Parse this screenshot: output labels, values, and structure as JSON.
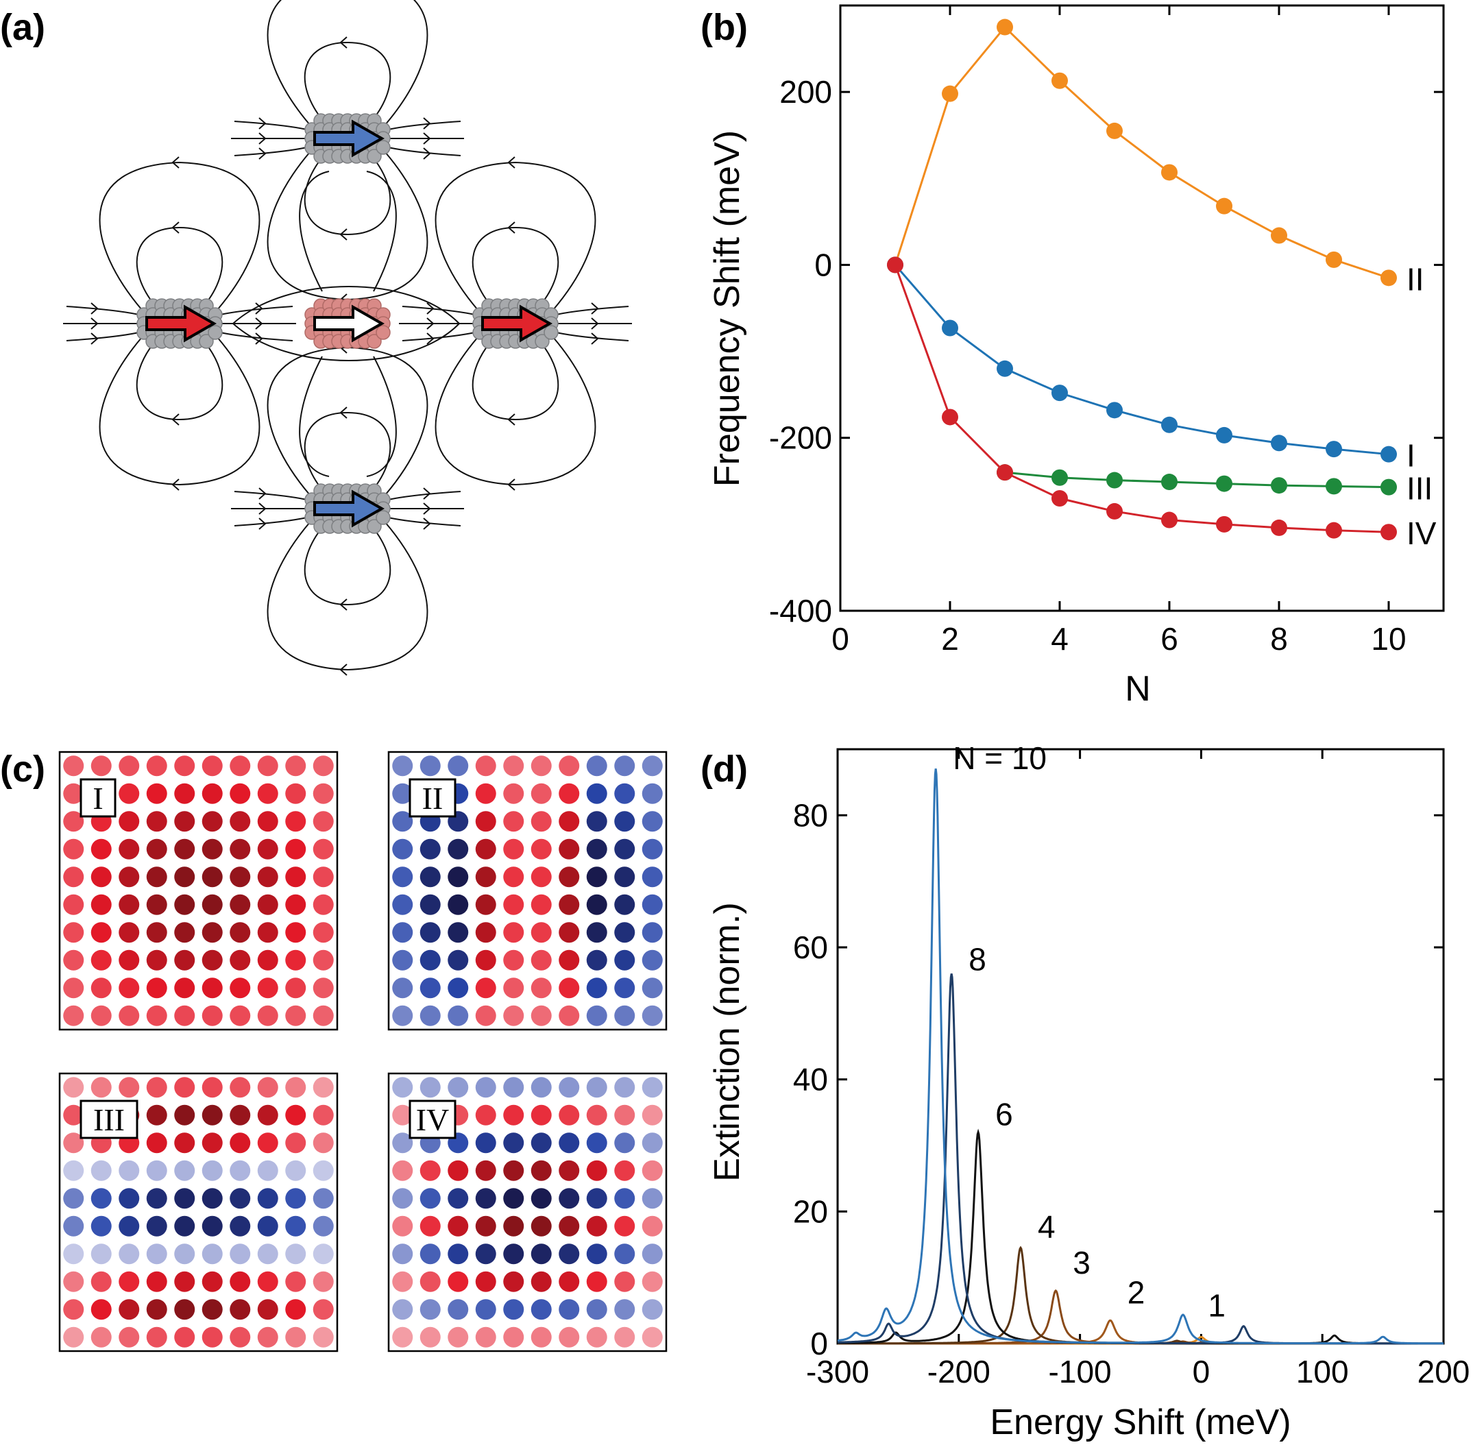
{
  "panels": {
    "a": "(a)",
    "b": "(b)",
    "c": "(c)",
    "d": "(d)"
  },
  "colors": {
    "orange": "#F28C1E",
    "blue": "#1E73B4",
    "green": "#1E8A3C",
    "red": "#D2232A",
    "center_dipole": "#D98A87",
    "side_arrow": "#E0242C",
    "vertical_arrow": "#4F79C0",
    "particle_gray": "#A7A9AC"
  },
  "diagram_a": {
    "particles": [
      {
        "name": "left",
        "arrow": "red"
      },
      {
        "name": "center",
        "arrow": "white"
      },
      {
        "name": "right",
        "arrow": "red"
      },
      {
        "name": "top",
        "arrow": "blue"
      },
      {
        "name": "bottom",
        "arrow": "blue"
      }
    ]
  },
  "chart_data": [
    {
      "panel": "b",
      "type": "line",
      "xlabel": "N",
      "ylabel": "Frequency Shift (meV)",
      "xlim": [
        0,
        11
      ],
      "ylim": [
        -400,
        300
      ],
      "xticks": [
        0,
        2,
        4,
        6,
        8,
        10
      ],
      "yticks": [
        -400,
        -200,
        0,
        200
      ],
      "series": [
        {
          "name": "II",
          "color": "orange",
          "x": [
            1,
            2,
            3,
            4,
            5,
            6,
            7,
            8,
            9,
            10
          ],
          "y": [
            0,
            198,
            275,
            213,
            155,
            107,
            68,
            34,
            6,
            -15
          ]
        },
        {
          "name": "I",
          "color": "blue",
          "x": [
            1,
            2,
            3,
            4,
            5,
            6,
            7,
            8,
            9,
            10
          ],
          "y": [
            0,
            -73,
            -120,
            -148,
            -168,
            -185,
            -197,
            -206,
            -213,
            -219
          ]
        },
        {
          "name": "III",
          "color": "green",
          "x": [
            3,
            4,
            5,
            6,
            7,
            8,
            9,
            10
          ],
          "y": [
            -240,
            -246,
            -249,
            -251,
            -253,
            -255,
            -256,
            -257
          ]
        },
        {
          "name": "IV",
          "color": "red",
          "x": [
            1,
            2,
            3,
            4,
            5,
            6,
            7,
            8,
            9,
            10
          ],
          "y": [
            0,
            -176,
            -240,
            -270,
            -285,
            -295,
            -300,
            -304,
            -307,
            -309
          ]
        }
      ]
    },
    {
      "panel": "c",
      "type": "heatmap",
      "grid": 10,
      "maps": [
        {
          "label": "I",
          "mode": "I"
        },
        {
          "label": "II",
          "mode": "II"
        },
        {
          "label": "III",
          "mode": "III"
        },
        {
          "label": "IV",
          "mode": "IV"
        }
      ]
    },
    {
      "panel": "d",
      "type": "line",
      "xlabel": "Energy Shift (meV)",
      "ylabel": "Extinction (norm.)",
      "xlim": [
        -300,
        200
      ],
      "ylim": [
        0,
        90
      ],
      "xticks": [
        -300,
        -200,
        -100,
        0,
        100,
        200
      ],
      "yticks": [
        0,
        20,
        40,
        60,
        80
      ],
      "series": [
        {
          "name": "1",
          "color": "#E08A1E",
          "peaks": [
            {
              "x": 0,
              "h": 1.0,
              "w": 4
            }
          ]
        },
        {
          "name": "2",
          "color": "#A0581C",
          "peaks": [
            {
              "x": -75,
              "h": 3.5,
              "w": 5
            },
            {
              "x": 2,
              "h": 0.2,
              "w": 4
            }
          ]
        },
        {
          "name": "3",
          "color": "#8A4A18",
          "peaks": [
            {
              "x": -120,
              "h": 8.0,
              "w": 5
            },
            {
              "x": -15,
              "h": 0.3,
              "w": 4
            }
          ]
        },
        {
          "name": "4",
          "color": "#5A3412",
          "peaks": [
            {
              "x": -149,
              "h": 14.5,
              "w": 5
            },
            {
              "x": -20,
              "h": 0.4,
              "w": 4
            }
          ]
        },
        {
          "name": "6",
          "color": "#111111",
          "peaks": [
            {
              "x": -184,
              "h": 32,
              "w": 5
            },
            {
              "x": -252,
              "h": 1.5,
              "w": 4
            },
            {
              "x": 110,
              "h": 1.2,
              "w": 4
            }
          ]
        },
        {
          "name": "8",
          "color": "#1F3D66",
          "peaks": [
            {
              "x": -206,
              "h": 56,
              "w": 5
            },
            {
              "x": -258,
              "h": 2.5,
              "w": 4
            },
            {
              "x": 35,
              "h": 2.6,
              "w": 4
            }
          ]
        },
        {
          "name": "N = 10",
          "color": "#2E75B6",
          "peaks": [
            {
              "x": -219,
              "h": 87,
              "w": 5
            },
            {
              "x": -260,
              "h": 4,
              "w": 5
            },
            {
              "x": -285,
              "h": 1,
              "w": 4
            },
            {
              "x": -15,
              "h": 4.3,
              "w": 5
            },
            {
              "x": 150,
              "h": 1,
              "w": 4
            }
          ]
        }
      ]
    }
  ]
}
